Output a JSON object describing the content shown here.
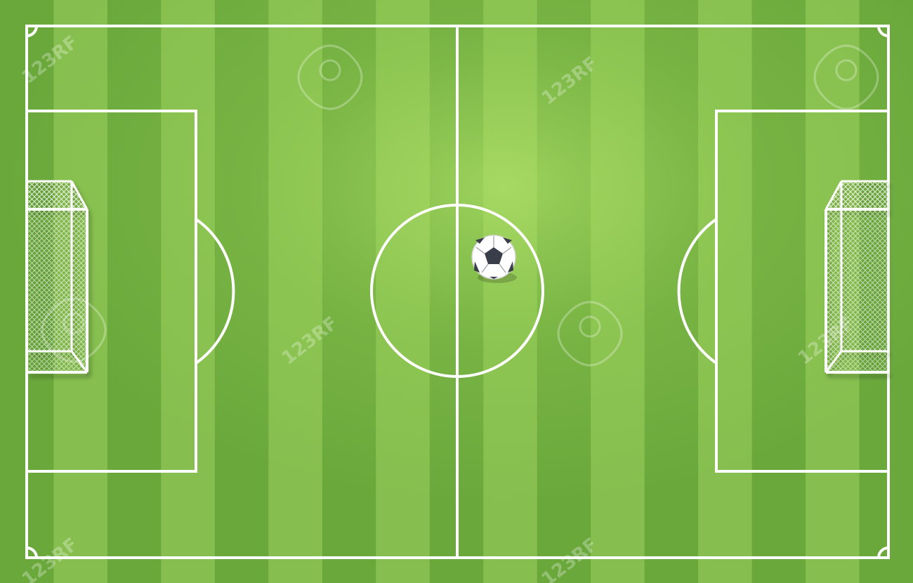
{
  "scene": {
    "subject": "football pitch",
    "colors": {
      "stripe_light": "#86bf4f",
      "stripe_dark": "#6aa83c",
      "lines": "#ffffff",
      "center_glow": "#b4e46c"
    },
    "stripe_count": 17
  },
  "watermark": {
    "text": "123RF"
  }
}
